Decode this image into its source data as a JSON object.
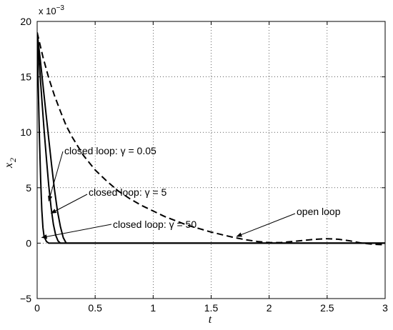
{
  "chart_data": {
    "type": "line",
    "title": "",
    "xlabel": "t",
    "ylabel": "x",
    "ylabel_subscript": "2",
    "y_scale_exponent_base": "x 10",
    "y_scale_exponent_power": "−3",
    "xlim": [
      0,
      3
    ],
    "ylim": [
      -5,
      20
    ],
    "xticks": [
      0,
      0.5,
      1,
      1.5,
      2,
      2.5,
      3
    ],
    "xtick_labels": [
      "0",
      "0.5",
      "1",
      "1.5",
      "2",
      "2.5",
      "3"
    ],
    "yticks": [
      -5,
      0,
      5,
      10,
      15,
      20
    ],
    "ytick_labels": [
      "−5",
      "0",
      "5",
      "10",
      "15",
      "20"
    ],
    "grid": true,
    "series": [
      {
        "style": "dashed",
        "x": [
          0,
          0.05,
          0.1,
          0.15,
          0.2,
          0.25,
          0.3,
          0.4,
          0.5,
          0.6,
          0.7,
          0.8,
          0.9,
          1.0,
          1.1,
          1.2,
          1.3,
          1.4,
          1.5,
          1.6,
          1.7,
          1.8,
          1.9,
          2.0,
          2.1,
          2.2,
          2.3,
          2.4,
          2.5,
          2.6,
          2.7,
          2.8,
          2.9,
          3.0
        ],
        "values": [
          19.0,
          16.8,
          14.9,
          13.3,
          11.9,
          10.6,
          9.6,
          7.9,
          6.6,
          5.6,
          4.7,
          4.0,
          3.4,
          2.9,
          2.4,
          2.0,
          1.6,
          1.3,
          1.0,
          0.75,
          0.5,
          0.3,
          0.15,
          0.05,
          0.05,
          0.15,
          0.25,
          0.35,
          0.4,
          0.35,
          0.2,
          0.0,
          -0.1,
          -0.15
        ]
      },
      {
        "style": "solid",
        "x": [
          0,
          0.01,
          0.02,
          0.03,
          0.04,
          0.05,
          0.06,
          0.08,
          0.1,
          0.15,
          3.0
        ],
        "values": [
          19.0,
          14.0,
          9.5,
          5.7,
          3.0,
          1.4,
          0.6,
          0.15,
          0.0,
          0.0,
          0.0
        ]
      },
      {
        "style": "solid",
        "x": [
          0,
          0.02,
          0.04,
          0.06,
          0.08,
          0.1,
          0.12,
          0.14,
          0.16,
          0.18,
          0.2,
          0.25,
          3.0
        ],
        "values": [
          19.0,
          16.0,
          13.0,
          10.2,
          7.6,
          5.2,
          3.2,
          1.7,
          0.7,
          0.2,
          0.0,
          0.0,
          0.0
        ]
      },
      {
        "style": "solid",
        "x": [
          0,
          0.025,
          0.05,
          0.075,
          0.1,
          0.125,
          0.15,
          0.175,
          0.2,
          0.225,
          0.25,
          0.3,
          3.0
        ],
        "values": [
          19.0,
          16.7,
          14.3,
          11.8,
          9.4,
          7.0,
          4.8,
          2.9,
          1.5,
          0.5,
          0.0,
          0.0,
          0.0
        ]
      }
    ],
    "annotations": [
      {
        "label": "closed loop: γ = 0.05",
        "arrow_to": [
          0.1,
          3.8
        ]
      },
      {
        "label": "closed loop: γ = 5",
        "arrow_to": [
          0.12,
          2.7
        ]
      },
      {
        "label": "closed loop: γ = 50",
        "arrow_to": [
          0.04,
          0.5
        ]
      },
      {
        "label": "open loop",
        "arrow_to": [
          1.72,
          0.6
        ]
      }
    ]
  }
}
